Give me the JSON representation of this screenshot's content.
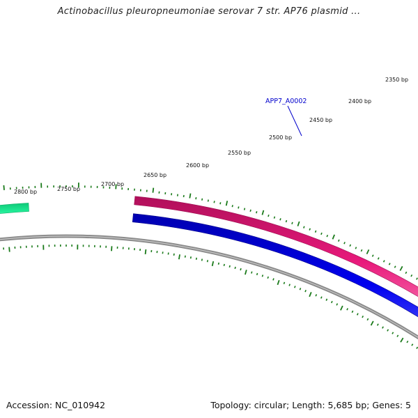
{
  "header": {
    "title": "Actinobacillus pleuropneumoniae serovar 7 str. AP76 plasmid ..."
  },
  "footer": {
    "accession": "Accession: NC_010942",
    "summary": "Topology: circular; Length: 5,685 bp; Genes: 5"
  },
  "map": {
    "tick_labels": [
      "2350 bp",
      "2400 bp",
      "2450 bp",
      "2500 bp",
      "2550 bp",
      "2600 bp",
      "2650 bp",
      "2700 bp",
      "2750 bp",
      "2800 bp"
    ],
    "gene_label": "APP7_A0002",
    "colors": {
      "gene_forward": "#e8197b",
      "gene_forward_left": "#1ee890",
      "cds": "#0000e6",
      "backbone": "#8a8a8a",
      "ticks": "#1a7a1a",
      "gene_label": "#0000cc"
    }
  }
}
